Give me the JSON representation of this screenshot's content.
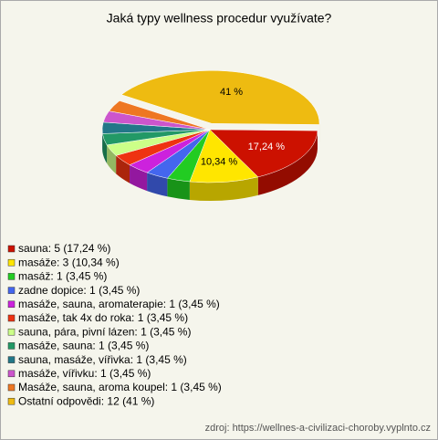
{
  "chart_data": {
    "type": "pie",
    "title": "Jaká typy wellness procedur využívate?",
    "categories": [
      "sauna: 5 (17,24 %)",
      "masáže: 3 (10,34 %)",
      "masáž: 1 (3,45 %)",
      "zadne dopice: 1 (3,45 %)",
      "masáže, sauna, aromaterapie: 1 (3,45 %)",
      "masáže, tak 4x do roka: 1 (3,45 %)",
      "sauna, pára, pivní lázen: 1 (3,45 %)",
      "masáže, sauna: 1 (3,45 %)",
      "sauna, masáže, vířivka: 1 (3,45 %)",
      "masáže, vířivku: 1 (3,45 %)",
      "Masáže, sauna, aroma koupel: 1 (3,45 %)",
      "Ostatní odpovědi: 12 (41 %)"
    ],
    "values": [
      17.24,
      10.34,
      3.45,
      3.45,
      3.45,
      3.45,
      3.45,
      3.45,
      3.45,
      3.45,
      3.45,
      41
    ],
    "value_labels": [
      "17,24 %",
      "10,34 %",
      null,
      null,
      null,
      null,
      null,
      null,
      null,
      null,
      null,
      "41 %"
    ],
    "colors": [
      "#cc1100",
      "#ffe600",
      "#22cc22",
      "#4466ee",
      "#cc22dd",
      "#ee3311",
      "#ccff88",
      "#229966",
      "#227788",
      "#cc55cc",
      "#ee7722",
      "#eebb11"
    ],
    "label_colors": [
      "#ffffff",
      "#000000",
      null,
      null,
      null,
      null,
      null,
      null,
      null,
      null,
      null,
      "#000000"
    ],
    "source": "zdroj: https://wellnes-a-civilizaci-choroby.vyplnto.cz"
  }
}
